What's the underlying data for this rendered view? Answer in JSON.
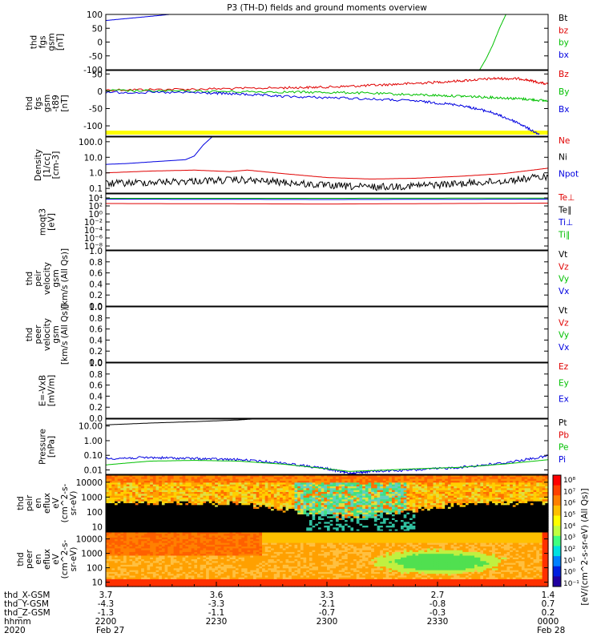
{
  "title": "P3 (TH-D) fields and ground moments overview",
  "chart_data": [
    {
      "type": "line",
      "ylabel": [
        "thd",
        "fgs",
        "gsm",
        "[nT]"
      ],
      "ylim": [
        -100,
        100
      ],
      "yticks": [
        "100",
        "50",
        "0",
        "-50",
        "-100"
      ],
      "yscale": "linear",
      "legend": [
        {
          "name": "Bt",
          "color": "#000000"
        },
        {
          "name": "bz",
          "color": "#e00000"
        },
        {
          "name": "by",
          "color": "#00c000"
        },
        {
          "name": "bx",
          "color": "#0000e0"
        }
      ],
      "series": [
        {
          "name": "bx",
          "color": "#0000e0",
          "x": [
            0,
            0.06,
            0.12,
            0.15
          ],
          "y": [
            78,
            87,
            96,
            101
          ]
        },
        {
          "name": "by",
          "color": "#00c000",
          "x": [
            0.845,
            0.86,
            0.875,
            0.89,
            0.905
          ],
          "y": [
            -101,
            -60,
            -10,
            50,
            101
          ]
        }
      ]
    },
    {
      "type": "line",
      "ylabel": [
        "thd",
        "fgs",
        "gsm",
        "-t89",
        "[nT]"
      ],
      "ylim": [
        -130,
        60
      ],
      "yticks": [
        "50",
        "0",
        "-50",
        "-100"
      ],
      "yscale": "linear",
      "legend": [
        {
          "name": "Bz",
          "color": "#e00000"
        },
        {
          "name": "By",
          "color": "#00c000"
        },
        {
          "name": "Bx",
          "color": "#0000e0"
        }
      ],
      "yellow_bar": true,
      "series": [
        {
          "name": "Bz",
          "color": "#e00000",
          "x": [
            0,
            0.2,
            0.4,
            0.5,
            0.6,
            0.7,
            0.8,
            0.88,
            0.94,
            1.0
          ],
          "y": [
            4,
            6,
            10,
            12,
            17,
            23,
            30,
            37,
            36,
            20
          ]
        },
        {
          "name": "By",
          "color": "#00c000",
          "x": [
            0,
            0.2,
            0.4,
            0.55,
            0.7,
            0.8,
            0.88,
            0.94,
            1.0
          ],
          "y": [
            2,
            0,
            -2,
            -4,
            -10,
            -14,
            -18,
            -22,
            -28
          ]
        },
        {
          "name": "Bx",
          "color": "#0000e0",
          "x": [
            0,
            0.2,
            0.3,
            0.4,
            0.55,
            0.7,
            0.8,
            0.87,
            0.93,
            0.98
          ],
          "y": [
            -3,
            -4,
            -8,
            -15,
            -20,
            -28,
            -40,
            -60,
            -90,
            -125
          ]
        }
      ]
    },
    {
      "type": "line",
      "ylabel": [
        "Density",
        "[1/cc]",
        "[cm-3]"
      ],
      "ylim": [
        0.05,
        200
      ],
      "yticks": [
        "100.0",
        "10.0",
        "1.0",
        "0.1"
      ],
      "yscale": "log",
      "legend": [
        {
          "name": "Ne",
          "color": "#e00000"
        },
        {
          "name": "Ni",
          "color": "#000000"
        },
        {
          "name": "Npot",
          "color": "#0000e0"
        }
      ],
      "series": [
        {
          "name": "Npot",
          "color": "#0000e0",
          "x": [
            0,
            0.05,
            0.1,
            0.18,
            0.2,
            0.22,
            0.24
          ],
          "y": [
            3.5,
            4,
            5,
            7,
            12,
            60,
            200
          ]
        },
        {
          "name": "Ne",
          "color": "#e00000",
          "x": [
            0,
            0.1,
            0.2,
            0.28,
            0.32,
            0.4,
            0.5,
            0.6,
            0.7,
            0.8,
            0.9,
            1.0
          ],
          "y": [
            1.0,
            1.3,
            1.5,
            1.2,
            1.5,
            0.9,
            0.5,
            0.4,
            0.45,
            0.6,
            0.9,
            2.0
          ]
        },
        {
          "name": "Ni",
          "color": "#000000",
          "x": [
            0,
            0.1,
            0.2,
            0.3,
            0.4,
            0.5,
            0.6,
            0.7,
            0.8,
            0.9,
            1.0
          ],
          "y": [
            0.2,
            0.25,
            0.3,
            0.35,
            0.25,
            0.15,
            0.12,
            0.15,
            0.2,
            0.3,
            0.6
          ]
        }
      ]
    },
    {
      "type": "line",
      "ylabel": [
        "moqt3",
        "[eV]"
      ],
      "ylim": [
        1e-09,
        100000.0
      ],
      "yticks": [
        "10⁴",
        "10²",
        "10⁰",
        "10⁻²",
        "10⁻⁴",
        "10⁻⁶",
        "10⁻⁸"
      ],
      "yscale": "log",
      "legend": [
        {
          "name": "Te⊥",
          "color": "#e00000"
        },
        {
          "name": "Te∥",
          "color": "#000000"
        },
        {
          "name": "Ti⊥",
          "color": "#0000e0"
        },
        {
          "name": "Ti∥",
          "color": "#00c000"
        }
      ],
      "series": [
        {
          "name": "Ti∥",
          "color": "#00c000",
          "x": [
            0,
            0.5,
            1.0
          ],
          "y": [
            8000,
            8000,
            9000
          ]
        },
        {
          "name": "Ti⊥",
          "color": "#0000e0",
          "x": [
            0,
            0.5,
            1.0
          ],
          "y": [
            5000,
            4000,
            5000
          ]
        },
        {
          "name": "Te⊥",
          "color": "#e00000",
          "x": [
            0,
            0.5,
            1.0
          ],
          "y": [
            400,
            300,
            500
          ]
        }
      ]
    },
    {
      "type": "line",
      "ylabel": [
        "thd",
        "peir",
        "velocity",
        "gsm",
        "[km/s (All Qs)]"
      ],
      "ylim": [
        0,
        1
      ],
      "yticks": [
        "1.0",
        "0.8",
        "0.6",
        "0.4",
        "0.2",
        "0.0"
      ],
      "yscale": "linear",
      "legend": [
        {
          "name": "Vt",
          "color": "#000000"
        },
        {
          "name": "Vz",
          "color": "#e00000"
        },
        {
          "name": "Vy",
          "color": "#00c000"
        },
        {
          "name": "Vx",
          "color": "#0000e0"
        }
      ],
      "series": []
    },
    {
      "type": "line",
      "ylabel": [
        "thd",
        "peer",
        "velocity",
        "gsm",
        "[km/s (All Qs)]"
      ],
      "ylim": [
        0,
        1
      ],
      "yticks": [
        "1.0",
        "0.8",
        "0.6",
        "0.4",
        "0.2",
        "0.0"
      ],
      "yscale": "linear",
      "legend": [
        {
          "name": "Vt",
          "color": "#000000"
        },
        {
          "name": "Vz",
          "color": "#e00000"
        },
        {
          "name": "Vy",
          "color": "#00c000"
        },
        {
          "name": "Vx",
          "color": "#0000e0"
        }
      ],
      "series": []
    },
    {
      "type": "line",
      "ylabel": [
        "E=-VxB",
        "[mV/m]"
      ],
      "ylim": [
        0,
        1
      ],
      "yticks": [
        "1.0",
        "0.8",
        "0.6",
        "0.4",
        "0.2",
        "0.0"
      ],
      "yscale": "linear",
      "legend": [
        {
          "name": "Ez",
          "color": "#e00000"
        },
        {
          "name": "Ey",
          "color": "#00c000"
        },
        {
          "name": "Ex",
          "color": "#0000e0"
        }
      ],
      "series": []
    },
    {
      "type": "line",
      "ylabel": [
        "Pressure",
        "[nPa]"
      ],
      "ylim": [
        0.005,
        30
      ],
      "yticks": [
        "10.00",
        "1.00",
        "0.10",
        "0.01"
      ],
      "yscale": "log",
      "legend": [
        {
          "name": "Pt",
          "color": "#000000"
        },
        {
          "name": "Pb",
          "color": "#e00000"
        },
        {
          "name": "Pe",
          "color": "#00c000"
        },
        {
          "name": "Pi",
          "color": "#0000e0"
        }
      ],
      "series": [
        {
          "name": "Pt",
          "color": "#000000",
          "x": [
            0,
            0.1,
            0.2,
            0.3,
            0.33
          ],
          "y": [
            12,
            16,
            20,
            26,
            30
          ]
        },
        {
          "name": "Pi",
          "color": "#0000e0",
          "x": [
            0,
            0.1,
            0.2,
            0.3,
            0.4,
            0.5,
            0.55,
            0.6,
            0.7,
            0.8,
            0.9,
            1.0
          ],
          "y": [
            0.06,
            0.07,
            0.06,
            0.05,
            0.03,
            0.012,
            0.006,
            0.008,
            0.01,
            0.015,
            0.03,
            0.09
          ]
        },
        {
          "name": "Pe",
          "color": "#00c000",
          "x": [
            0,
            0.05,
            0.1,
            0.2,
            0.3,
            0.4,
            0.5,
            0.55,
            0.6,
            0.7,
            0.8,
            0.9,
            1.0
          ],
          "y": [
            0.022,
            0.03,
            0.04,
            0.045,
            0.04,
            0.025,
            0.012,
            0.008,
            0.009,
            0.012,
            0.015,
            0.025,
            0.05
          ]
        }
      ]
    },
    {
      "type": "heatmap",
      "ylabel": [
        "thd",
        "peir",
        "en",
        "eflux",
        "eV",
        "(cm^2-s-",
        "sr-eV)"
      ],
      "ylim": [
        5,
        30000
      ],
      "yticks": [
        "10000",
        "1000",
        "100",
        "10"
      ],
      "yscale": "log",
      "variant": "ion"
    },
    {
      "type": "heatmap",
      "ylabel": [
        "thd",
        "peer",
        "en",
        "eflux",
        "eV",
        "(cm^2-s-",
        "sr-eV)"
      ],
      "ylim": [
        5,
        30000
      ],
      "yticks": [
        "10000",
        "1000",
        "100",
        "10"
      ],
      "yscale": "log",
      "variant": "electron"
    }
  ],
  "colorbar": {
    "label": "[eV/(cm^2-s-sr-eV) (All Qs)]",
    "ticks": [
      "10⁸",
      "10⁷",
      "10⁶",
      "10⁵",
      "10⁴",
      "10³",
      "10²",
      "10¹",
      "10⁰",
      "10⁻¹"
    ]
  },
  "x_axis": {
    "rows": [
      {
        "label": "thd_X-GSM",
        "values": [
          "3.7",
          "3.6",
          "3.3",
          "2.7",
          "1.4"
        ]
      },
      {
        "label": "thd_Y-GSM",
        "values": [
          "-4.3",
          "-3.3",
          "-2.1",
          "-0.8",
          "0.7"
        ]
      },
      {
        "label": "thd_Z-GSM",
        "values": [
          "-1.3",
          "-1.1",
          "-0.7",
          "-0.3",
          "0.2"
        ]
      },
      {
        "label": "hhmm",
        "values": [
          "2200",
          "2230",
          "2300",
          "2330",
          "0000"
        ]
      },
      {
        "label": "2020",
        "values": [
          "Feb 27",
          "",
          "",
          "",
          "Feb 28"
        ]
      }
    ]
  }
}
